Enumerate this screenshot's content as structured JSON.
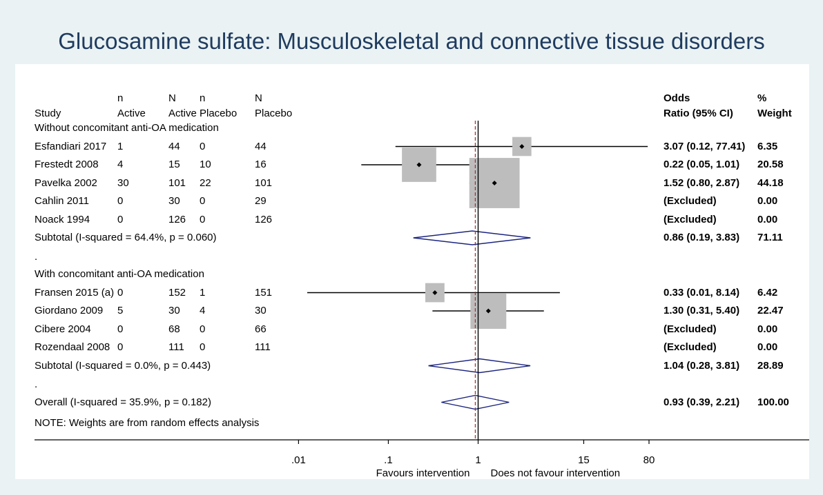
{
  "chart_data": {
    "type": "forest",
    "title": "Glucosamine sulfate: Musculoskeletal and connective tissue disorders",
    "headers": {
      "study": "Study",
      "n_active": [
        "n",
        "Active"
      ],
      "N_active": [
        "N",
        "Active"
      ],
      "n_placebo": [
        "n",
        "Placebo"
      ],
      "N_placebo": [
        "N",
        "Placebo"
      ],
      "or": [
        "Odds",
        "Ratio (95% CI)"
      ],
      "weight": [
        "%",
        "Weight"
      ]
    },
    "groups": [
      {
        "label": "Without concomitant anti-OA medication",
        "studies": [
          {
            "study": "Esfandiari 2017",
            "n_active": "1",
            "N_active": "44",
            "n_placebo": "0",
            "N_placebo": "44",
            "or_text": "3.07 (0.12, 77.41)",
            "weight_text": "6.35",
            "or": 3.07,
            "lo": 0.12,
            "hi": 77.41,
            "weight": 6.35
          },
          {
            "study": "Frestedt 2008",
            "n_active": "4",
            "N_active": "15",
            "n_placebo": "10",
            "N_placebo": "16",
            "or_text": "0.22 (0.05, 1.01)",
            "weight_text": "20.58",
            "or": 0.22,
            "lo": 0.05,
            "hi": 1.01,
            "weight": 20.58
          },
          {
            "study": "Pavelka 2002",
            "n_active": "30",
            "N_active": "101",
            "n_placebo": "22",
            "N_placebo": "101",
            "or_text": "1.52 (0.80, 2.87)",
            "weight_text": "44.18",
            "or": 1.52,
            "lo": 0.8,
            "hi": 2.87,
            "weight": 44.18
          },
          {
            "study": "Cahlin 2011",
            "n_active": "0",
            "N_active": "30",
            "n_placebo": "0",
            "N_placebo": "29",
            "or_text": "(Excluded)",
            "weight_text": "0.00",
            "or": null,
            "lo": null,
            "hi": null,
            "weight": 0
          },
          {
            "study": "Noack 1994",
            "n_active": "0",
            "N_active": "126",
            "n_placebo": "0",
            "N_placebo": "126",
            "or_text": "(Excluded)",
            "weight_text": "0.00",
            "or": null,
            "lo": null,
            "hi": null,
            "weight": 0
          }
        ],
        "subtotal": {
          "label": "Subtotal  (I-squared = 64.4%, p = 0.060)",
          "or_text": "0.86 (0.19, 3.83)",
          "weight_text": "71.11",
          "or": 0.86,
          "lo": 0.19,
          "hi": 3.83
        }
      },
      {
        "label": "With concomitant anti-OA medication",
        "studies": [
          {
            "study": "Fransen 2015 (a)",
            "n_active": "0",
            "N_active": "152",
            "n_placebo": "1",
            "N_placebo": "151",
            "or_text": "0.33 (0.01, 8.14)",
            "weight_text": "6.42",
            "or": 0.33,
            "lo": 0.01,
            "hi": 8.14,
            "weight": 6.42
          },
          {
            "study": "Giordano 2009",
            "n_active": "5",
            "N_active": "30",
            "n_placebo": "4",
            "N_placebo": "30",
            "or_text": "1.30 (0.31, 5.40)",
            "weight_text": "22.47",
            "or": 1.3,
            "lo": 0.31,
            "hi": 5.4,
            "weight": 22.47
          },
          {
            "study": "Cibere 2004",
            "n_active": "0",
            "N_active": "68",
            "n_placebo": "0",
            "N_placebo": "66",
            "or_text": "(Excluded)",
            "weight_text": "0.00",
            "or": null,
            "lo": null,
            "hi": null,
            "weight": 0
          },
          {
            "study": "Rozendaal 2008",
            "n_active": "0",
            "N_active": "111",
            "n_placebo": "0",
            "N_placebo": "111",
            "or_text": "(Excluded)",
            "weight_text": "0.00",
            "or": null,
            "lo": null,
            "hi": null,
            "weight": 0
          }
        ],
        "subtotal": {
          "label": "Subtotal  (I-squared = 0.0%, p = 0.443)",
          "or_text": "1.04 (0.28, 3.81)",
          "weight_text": "28.89",
          "or": 1.04,
          "lo": 0.28,
          "hi": 3.81
        }
      }
    ],
    "separator": ".",
    "overall": {
      "label": "Overall  (I-squared = 35.9%, p = 0.182)",
      "or_text": "0.93 (0.39, 2.21)",
      "weight_text": "100.00",
      "or": 0.93,
      "lo": 0.39,
      "hi": 2.21
    },
    "note": "NOTE: Weights are from random effects analysis",
    "x_axis": {
      "scale": "log",
      "ticks": [
        {
          "value": 0.01,
          "label": ".01"
        },
        {
          "value": 0.1,
          "label": ".1"
        },
        {
          "value": 1,
          "label": "1"
        },
        {
          "value": 15,
          "label": "15"
        },
        {
          "value": 80,
          "label": "80"
        }
      ],
      "xlim": [
        0.0125,
        80
      ],
      "left_label": "Favours intervention",
      "right_label": "Does not favour intervention"
    },
    "colors": {
      "background": "#eaf2f3",
      "title": "#1f3b5f",
      "diamond": "#1a237e",
      "box": "#bdbdbd",
      "null_line": "#000000",
      "overall_line": "#a52a2a"
    }
  }
}
